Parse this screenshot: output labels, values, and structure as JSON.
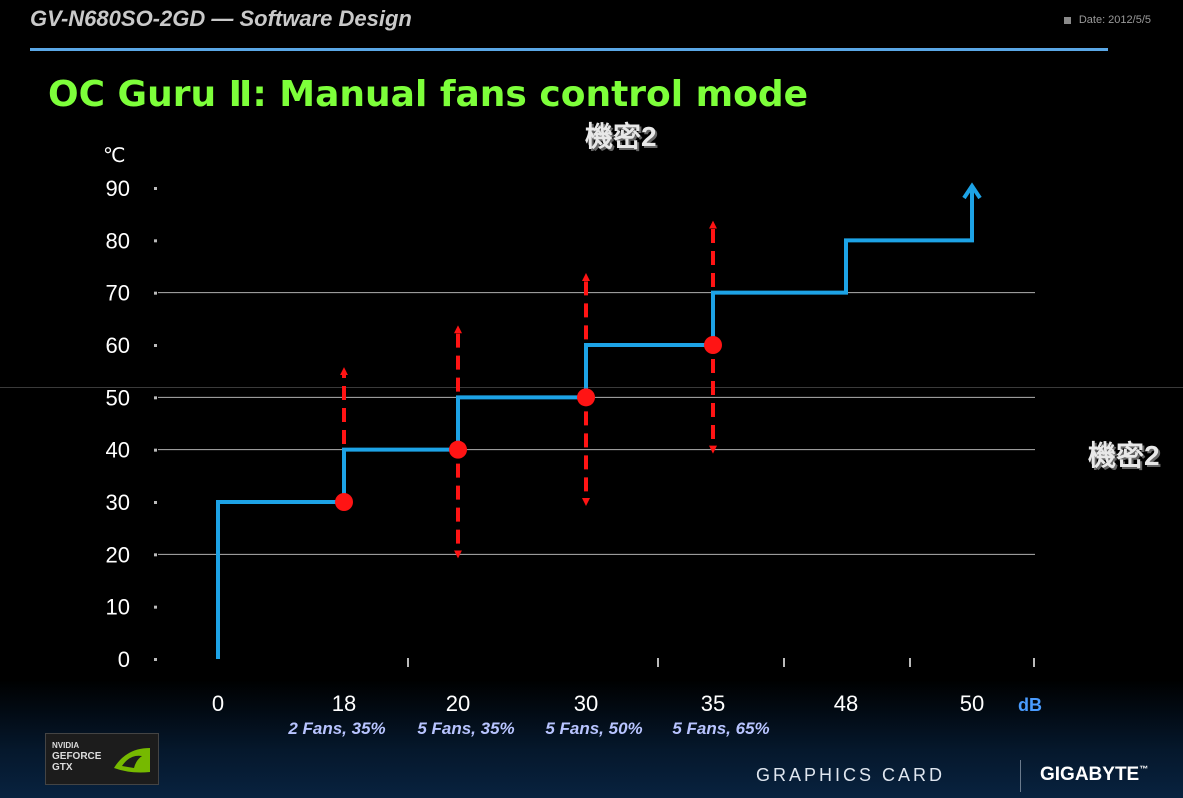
{
  "header": {
    "product": "GV-N680SO-2GD",
    "subtitle": "— Software Design",
    "date": "Date: 2012/5/5"
  },
  "slide_title": "OC Guru Ⅱ: Manual fans control mode",
  "watermarks": [
    "機密2",
    "機密2"
  ],
  "footer": {
    "badge_lines": [
      "NVIDIA",
      "GEFORCE",
      "GTX"
    ],
    "graphics_card": "GRAPHICS CARD",
    "brand": "GIGABYTE",
    "brand_tm": "™"
  },
  "colors": {
    "line": "#1da3e6",
    "marker": "#ff1414",
    "title": "#7dff3a",
    "grid": "#b0b0b0"
  },
  "chart_data": {
    "type": "line",
    "title": "",
    "ylabel": "℃",
    "xlabel": "dB",
    "ylim": [
      0,
      90
    ],
    "yticks": [
      0,
      10,
      20,
      30,
      40,
      50,
      60,
      70,
      80,
      90
    ],
    "grid_lines_y": [
      20,
      40,
      50,
      70
    ],
    "x_categories": [
      "0",
      "18",
      "20",
      "30",
      "35",
      "48",
      "50"
    ],
    "fan_labels": [
      "2 Fans, 35%",
      "5 Fans, 35%",
      "5 Fans, 50%",
      "5 Fans, 65%"
    ],
    "fan_label_positions": [
      "18",
      "20",
      "30",
      "35"
    ],
    "series": [
      {
        "points": [
          {
            "x": "0",
            "y": 0
          },
          {
            "x": "0",
            "y": 30
          },
          {
            "x": "18",
            "y": 30
          },
          {
            "x": "18",
            "y": 40
          },
          {
            "x": "20",
            "y": 40
          },
          {
            "x": "20",
            "y": 50
          },
          {
            "x": "30",
            "y": 50
          },
          {
            "x": "30",
            "y": 60
          },
          {
            "x": "35",
            "y": 60
          },
          {
            "x": "35",
            "y": 70
          },
          {
            "x": "48",
            "y": 70
          },
          {
            "x": "48",
            "y": 80
          },
          {
            "x": "50",
            "y": 80
          },
          {
            "x": "50",
            "y": 90
          }
        ]
      }
    ],
    "control_points": [
      {
        "x": "18",
        "y": 30
      },
      {
        "x": "20",
        "y": 40
      },
      {
        "x": "30",
        "y": 50
      },
      {
        "x": "35",
        "y": 60
      }
    ],
    "adjust_arrows": [
      {
        "x": "18",
        "up_to": 55
      },
      {
        "x": "20",
        "up_to": 63,
        "down_to": 20
      },
      {
        "x": "30",
        "up_to": 73,
        "down_to": 30
      },
      {
        "x": "35",
        "up_to": 83,
        "down_to": 40
      }
    ]
  }
}
